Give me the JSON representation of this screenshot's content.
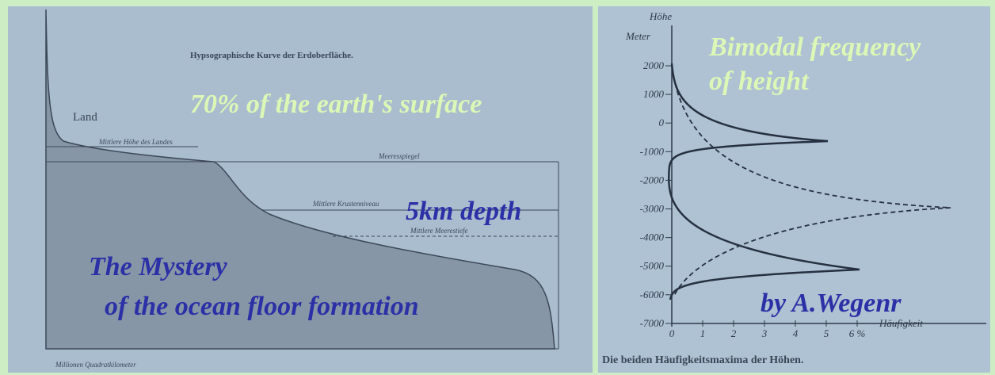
{
  "overlay": {
    "surface": "70% of the earth's surface",
    "depth": "5km depth",
    "mystery": [
      "The Mystery",
      "of the ocean floor formation"
    ],
    "bimodal": [
      "Bimodal frequency",
      "of height"
    ],
    "author": "by A.Wegenr"
  },
  "left_figure": {
    "title": "Hypsographische Kurve der Erdoberfläche.",
    "land": "Land",
    "land_height": "Mittlere Höhe des Landes",
    "sea_level": "Meeresspiegel",
    "crust_level": "Mittlere Krustenniveau",
    "sea_depth": "Mittlere Meerestiefe",
    "x_label": "Millionen Quadratkilometer"
  },
  "right_figure": {
    "y_title": "Höhe",
    "y_unit": "Meter",
    "y_ticks": [
      "2000",
      "1000",
      "0",
      "-1000",
      "-2000",
      "-3000",
      "-4000",
      "-5000",
      "-6000",
      "-7000"
    ],
    "x_ticks": [
      "0",
      "1",
      "2",
      "3",
      "4",
      "5",
      "6 %"
    ],
    "x_label": "Häufigkeit",
    "caption": "Die beiden Häufigkeitsmaxima der Höhen."
  }
}
